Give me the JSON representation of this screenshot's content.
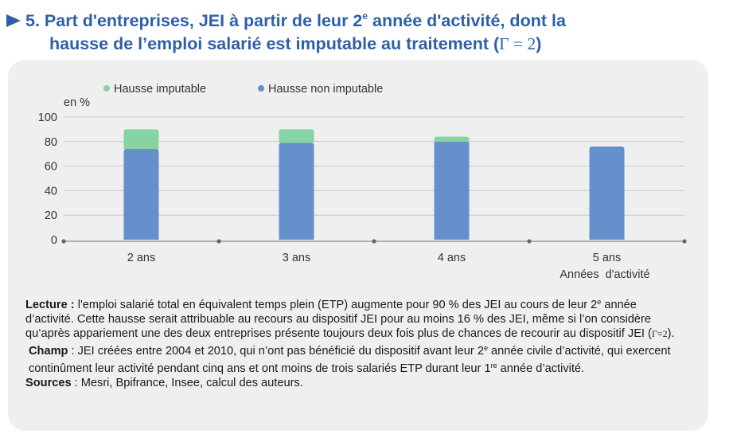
{
  "title": {
    "number": "5.",
    "line1_a": "Part d'entreprises, JEI à partir de leur 2",
    "line1_sup": "e",
    "line1_b": " année d'activité, dont la",
    "line2_a": "hausse de l’emploi salarié est imputable au traitement (",
    "line2_gamma": "Γ = 2",
    "line2_b": ")"
  },
  "chart_data": {
    "type": "bar",
    "stacked": true,
    "categories": [
      "2 ans",
      "3 ans",
      "4 ans",
      "5 ans"
    ],
    "series": [
      {
        "name": "Hausse non imputable",
        "values": [
          74,
          79,
          80,
          76
        ],
        "color": "#6590cc"
      },
      {
        "name": "Hausse imputable",
        "values": [
          16,
          11,
          4,
          0
        ],
        "color": "#86d3a4"
      }
    ],
    "ylabel": "en %",
    "xlabel": "Années  d'activité",
    "ylim": [
      0,
      100
    ],
    "yticks": [
      0,
      20,
      40,
      60,
      80,
      100
    ],
    "grid": true,
    "legend_position": "top-left"
  },
  "notes": {
    "lecture_label": "Lecture :",
    "lecture_text_a": " l'emploi salarié total en équivalent temps plein (ETP) augmente pour 90 % des JEI au cours de leur 2",
    "lecture_sup": "e",
    "lecture_text_b": " année d’activité. Cette hausse serait attribuable au recours au dispositif JEI pour au moins 16 % des JEI, même si l’on considère qu’après appariement une des deux entreprises présente toujours deux fois plus de chances de recourir au dispositif JEI (",
    "lecture_gamma": "Γ=2",
    "lecture_text_c": ").",
    "champ_label": "Champ",
    "champ_text_a": " : JEI créées entre 2004 et 2010, qui n’ont pas bénéficié du dispositif avant leur 2",
    "champ_sup1": "e",
    "champ_text_b": " année civile d’activité, qui exercent continûment leur activité pendant cinq ans et ont moins de trois salariés ETP durant leur 1",
    "champ_sup2": "re",
    "champ_text_c": " année d’activité.",
    "sources_label": "Sources",
    "sources_text": " : Mesri, Bpifrance, Insee, calcul des auteurs."
  }
}
